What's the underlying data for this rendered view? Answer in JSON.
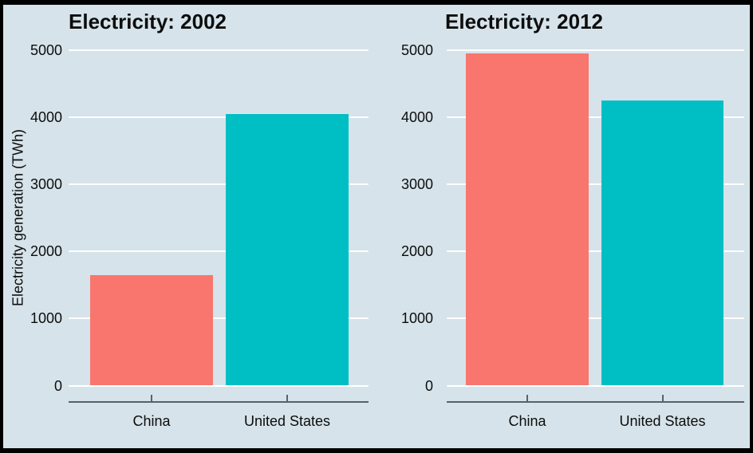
{
  "frame": {
    "border_color": "#000000"
  },
  "colors": {
    "background": "#d6e3ea",
    "gridline": "#ffffff",
    "axis_line": "#59616a",
    "text": "#0d0d0d",
    "bar_china": "#f8766d",
    "bar_united_states": "#00bfc4"
  },
  "chart_data": [
    {
      "type": "bar",
      "title": "Electricity: 2002",
      "categories": [
        "China",
        "United States"
      ],
      "values": [
        1650,
        4050
      ],
      "bar_colors": [
        "#f8766d",
        "#00bfc4"
      ],
      "xlabel": "",
      "ylabel": "Electricity generation (TWh)",
      "ylim": [
        0,
        5000
      ],
      "yticks": [
        "0",
        "1000",
        "2000",
        "3000",
        "4000",
        "5000"
      ],
      "ytick_values": [
        0,
        1000,
        2000,
        3000,
        4000,
        5000
      ],
      "grid": true,
      "legend": false
    },
    {
      "type": "bar",
      "title": "Electricity: 2012",
      "categories": [
        "China",
        "United States"
      ],
      "values": [
        4950,
        4250
      ],
      "bar_colors": [
        "#f8766d",
        "#00bfc4"
      ],
      "xlabel": "",
      "ylabel": "",
      "ylim": [
        0,
        5000
      ],
      "yticks": [
        "0",
        "1000",
        "2000",
        "3000",
        "4000",
        "5000"
      ],
      "ytick_values": [
        0,
        1000,
        2000,
        3000,
        4000,
        5000
      ],
      "grid": true,
      "legend": false
    }
  ]
}
